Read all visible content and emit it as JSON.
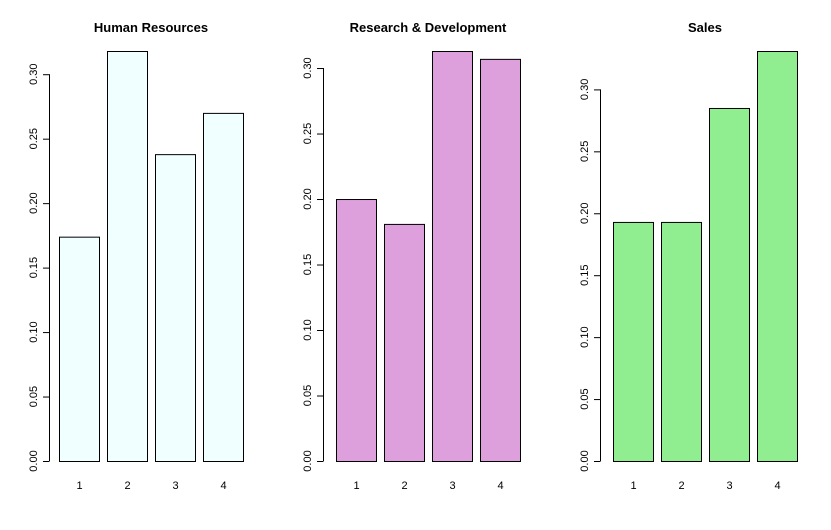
{
  "chart_data": [
    {
      "type": "bar",
      "title": "Human Resources",
      "categories": [
        "1",
        "2",
        "3",
        "4"
      ],
      "values": [
        0.174,
        0.318,
        0.238,
        0.27
      ],
      "ylim": [
        0,
        0.318
      ],
      "yticks": [
        "0.00",
        "0.05",
        "0.10",
        "0.15",
        "0.20",
        "0.25",
        "0.30"
      ],
      "color": "#F0FFFF",
      "grid": false
    },
    {
      "type": "bar",
      "title": "Research & Development",
      "categories": [
        "1",
        "2",
        "3",
        "4"
      ],
      "values": [
        0.2,
        0.181,
        0.313,
        0.307
      ],
      "ylim": [
        0,
        0.313
      ],
      "yticks": [
        "0.00",
        "0.05",
        "0.10",
        "0.15",
        "0.20",
        "0.25",
        "0.30"
      ],
      "color": "#DDA0DD",
      "grid": false
    },
    {
      "type": "bar",
      "title": "Sales",
      "categories": [
        "1",
        "2",
        "3",
        "4"
      ],
      "values": [
        0.193,
        0.193,
        0.285,
        0.331
      ],
      "ylim": [
        0,
        0.331
      ],
      "yticks": [
        "0.00",
        "0.05",
        "0.10",
        "0.15",
        "0.20",
        "0.25",
        "0.30"
      ],
      "color": "#90EE90",
      "grid": false
    }
  ]
}
